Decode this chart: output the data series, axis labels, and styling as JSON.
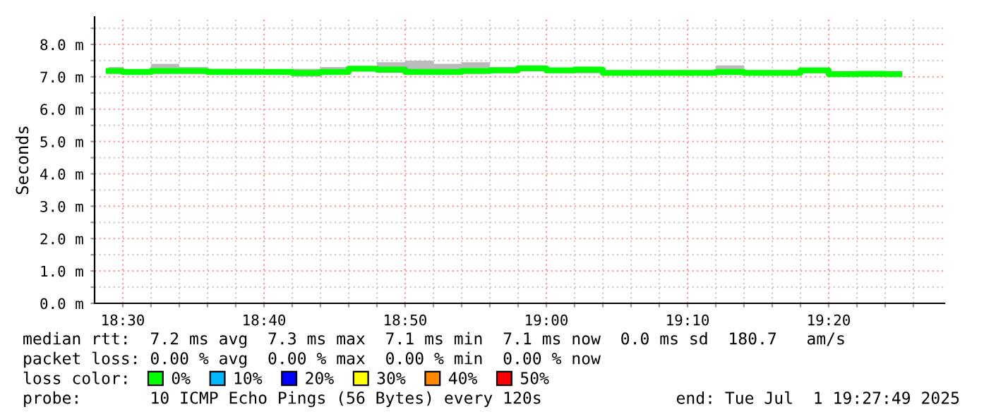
{
  "chart_data": {
    "type": "step",
    "ylabel": "Seconds",
    "x": [
      18.4833,
      18.5167,
      18.55,
      18.5833,
      18.6167,
      18.65,
      18.6833,
      18.7167,
      18.75,
      18.7833,
      18.8167,
      18.85,
      18.8833,
      18.9167,
      18.95,
      18.9833,
      19.0167,
      19.05,
      19.0833,
      19.1167,
      19.15,
      19.1833,
      19.2167,
      19.25,
      19.2833,
      19.3167,
      19.35,
      19.3833,
      19.4167
    ],
    "series": [
      {
        "name": "0%",
        "color": "#00ff00",
        "values": [
          7.18,
          7.15,
          7.18,
          7.18,
          7.15,
          7.15,
          7.15,
          7.12,
          7.15,
          7.25,
          7.22,
          7.15,
          7.15,
          7.18,
          7.2,
          7.26,
          7.2,
          7.22,
          7.12,
          7.12,
          7.12,
          7.12,
          7.15,
          7.12,
          7.12,
          7.2,
          7.08,
          7.09,
          7.08
        ],
        "lower": [
          7.1,
          7.1,
          7.1,
          7.1,
          7.1,
          7.1,
          7.1,
          7.0,
          7.1,
          7.2,
          7.2,
          7.1,
          7.1,
          7.1,
          7.1,
          7.2,
          7.1,
          7.1,
          7.05,
          7.1,
          7.05,
          7.05,
          7.05,
          7.05,
          7.05,
          7.1,
          7.05,
          7.05,
          7.05
        ],
        "upper": [
          7.3,
          7.2,
          7.4,
          7.3,
          7.25,
          7.25,
          7.2,
          7.25,
          7.3,
          7.2,
          7.45,
          7.5,
          7.4,
          7.45,
          7.3,
          7.3,
          7.25,
          7.3,
          7.15,
          7.2,
          7.2,
          7.2,
          7.35,
          7.2,
          7.15,
          7.2,
          7.1,
          7.05,
          7.1
        ]
      },
      {
        "name": "10%",
        "color": "#00b8ff",
        "values": [
          null,
          null,
          null,
          null,
          null,
          null,
          null,
          null,
          null,
          null,
          null,
          null,
          null,
          null,
          null,
          null,
          null,
          null,
          null,
          null,
          null,
          null,
          null,
          null,
          null,
          null,
          null,
          null,
          null
        ]
      },
      {
        "name": "20%",
        "color": "#0000ff",
        "values": [
          null,
          null,
          null,
          null,
          null,
          null,
          null,
          null,
          null,
          null,
          null,
          null,
          null,
          null,
          null,
          null,
          null,
          null,
          null,
          null,
          null,
          null,
          null,
          null,
          null,
          null,
          null,
          null,
          null
        ]
      },
      {
        "name": "30%",
        "color": "#ffff00",
        "values": [
          null,
          null,
          null,
          null,
          null,
          null,
          null,
          null,
          null,
          null,
          null,
          null,
          null,
          null,
          null,
          null,
          null,
          null,
          null,
          null,
          null,
          null,
          null,
          null,
          null,
          null,
          null,
          null,
          null
        ]
      },
      {
        "name": "40%",
        "color": "#ff8800",
        "values": [
          null,
          null,
          null,
          null,
          null,
          null,
          null,
          null,
          null,
          null,
          null,
          null,
          null,
          null,
          null,
          null,
          null,
          null,
          null,
          null,
          null,
          null,
          null,
          null,
          null,
          null,
          null,
          null,
          null
        ]
      },
      {
        "name": "50%",
        "color": "#ff0000",
        "values": [
          null,
          null,
          null,
          null,
          null,
          null,
          null,
          null,
          null,
          null,
          null,
          null,
          null,
          null,
          null,
          null,
          null,
          null,
          null,
          null,
          null,
          null,
          null,
          null,
          null,
          null,
          null,
          null,
          null
        ]
      }
    ],
    "legend": "bottom",
    "legend_title": "loss color:",
    "xlim": [
      18.4667,
      19.47
    ],
    "xticks": [
      {
        "value": 18.5,
        "label": "18:30"
      },
      {
        "value": 18.5333,
        "label": null
      },
      {
        "value": 18.5667,
        "label": null
      },
      {
        "value": 18.6,
        "label": null
      },
      {
        "value": 18.6333,
        "label": null
      },
      {
        "value": 18.6667,
        "label": "18:40"
      },
      {
        "value": 18.7,
        "label": null
      },
      {
        "value": 18.7333,
        "label": null
      },
      {
        "value": 18.7667,
        "label": null
      },
      {
        "value": 18.8,
        "label": null
      },
      {
        "value": 18.8333,
        "label": "18:50"
      },
      {
        "value": 18.8667,
        "label": null
      },
      {
        "value": 18.9,
        "label": null
      },
      {
        "value": 18.9333,
        "label": null
      },
      {
        "value": 18.9667,
        "label": null
      },
      {
        "value": 19.0,
        "label": "19:00"
      },
      {
        "value": 19.0333,
        "label": null
      },
      {
        "value": 19.0667,
        "label": null
      },
      {
        "value": 19.1,
        "label": null
      },
      {
        "value": 19.1333,
        "label": null
      },
      {
        "value": 19.1667,
        "label": "19:10"
      },
      {
        "value": 19.2,
        "label": null
      },
      {
        "value": 19.2333,
        "label": null
      },
      {
        "value": 19.2667,
        "label": null
      },
      {
        "value": 19.3,
        "label": null
      },
      {
        "value": 19.3333,
        "label": "19:20"
      },
      {
        "value": 19.3667,
        "label": null
      },
      {
        "value": 19.4,
        "label": null
      },
      {
        "value": 19.4333,
        "label": null
      }
    ],
    "ylim": [
      0,
      8.85
    ],
    "yticks": [
      {
        "value": 0,
        "label": "0.0 m"
      },
      {
        "value": 0.5,
        "label": null
      },
      {
        "value": 1,
        "label": "1.0 m"
      },
      {
        "value": 1.5,
        "label": null
      },
      {
        "value": 2,
        "label": "2.0 m"
      },
      {
        "value": 2.5,
        "label": null
      },
      {
        "value": 3,
        "label": "3.0 m"
      },
      {
        "value": 3.5,
        "label": null
      },
      {
        "value": 4,
        "label": "4.0 m"
      },
      {
        "value": 4.5,
        "label": null
      },
      {
        "value": 5,
        "label": "5.0 m"
      },
      {
        "value": 5.5,
        "label": null
      },
      {
        "value": 6,
        "label": "6.0 m"
      },
      {
        "value": 6.5,
        "label": null
      },
      {
        "value": 7,
        "label": "7.0 m"
      },
      {
        "value": 7.5,
        "label": null
      },
      {
        "value": 8,
        "label": "8.0 m"
      },
      {
        "value": 8.5,
        "label": null
      }
    ],
    "grid": true,
    "annotations": [
      "median rtt:  7.2 ms avg  7.3 ms max  7.1 ms min  7.1 ms now  0.0 ms sd  180.7   am/s",
      "packet loss: 0.00 % avg  0.00 % max  0.00 % min  0.00 % now",
      "probe:       10 ICMP Echo Pings (56 Bytes) every 120s",
      "end: Tue Jul  1 19:27:49 2025"
    ]
  }
}
